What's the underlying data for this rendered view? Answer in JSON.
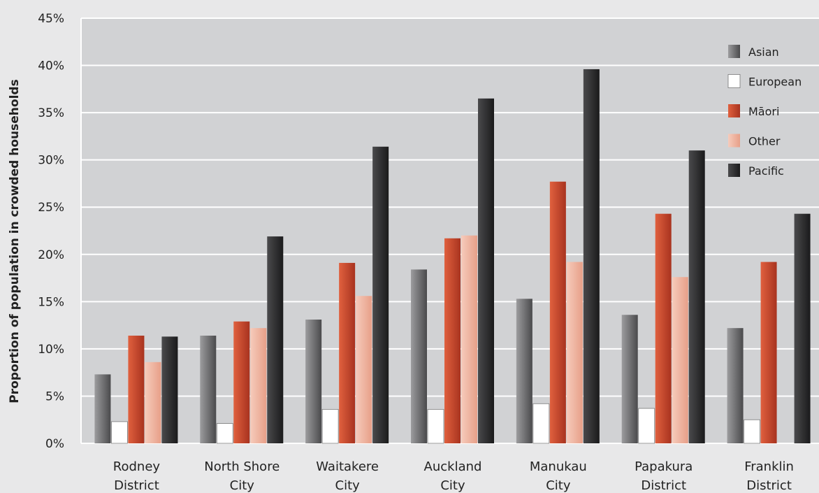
{
  "chart_data": {
    "type": "bar",
    "ylabel": "Proportion of population in crowded households",
    "yticks": [
      "0%",
      "5%",
      "10%",
      "15%",
      "20%",
      "25%",
      "30%",
      "35%",
      "40%",
      "45%"
    ],
    "ylim": [
      0,
      45
    ],
    "grid": true,
    "legend_position": "top-right",
    "categories": [
      [
        "Rodney",
        "District"
      ],
      [
        "North Shore",
        "City"
      ],
      [
        "Waitakere",
        "City"
      ],
      [
        "Auckland",
        "City"
      ],
      [
        "Manukau",
        "City"
      ],
      [
        "Papakura",
        "District"
      ],
      [
        "Franklin",
        "District"
      ]
    ],
    "series": [
      {
        "name": "Asian",
        "color": "#6e6e70",
        "values": [
          7.3,
          11.4,
          13.1,
          18.4,
          15.3,
          13.6,
          12.2
        ]
      },
      {
        "name": "European",
        "color": "#ffffff",
        "values": [
          2.3,
          2.1,
          3.6,
          3.6,
          4.2,
          3.7,
          2.5
        ]
      },
      {
        "name": "Māori",
        "color": "#c94a30",
        "values": [
          11.4,
          12.9,
          19.1,
          21.7,
          27.7,
          24.3,
          19.2
        ]
      },
      {
        "name": "Other",
        "color": "#f0b8a4",
        "values": [
          8.6,
          12.2,
          15.6,
          22.0,
          19.2,
          17.6,
          null
        ]
      },
      {
        "name": "Pacific",
        "color": "#2e2e30",
        "values": [
          11.3,
          21.9,
          31.4,
          36.5,
          39.6,
          31.0,
          24.3
        ]
      }
    ]
  }
}
